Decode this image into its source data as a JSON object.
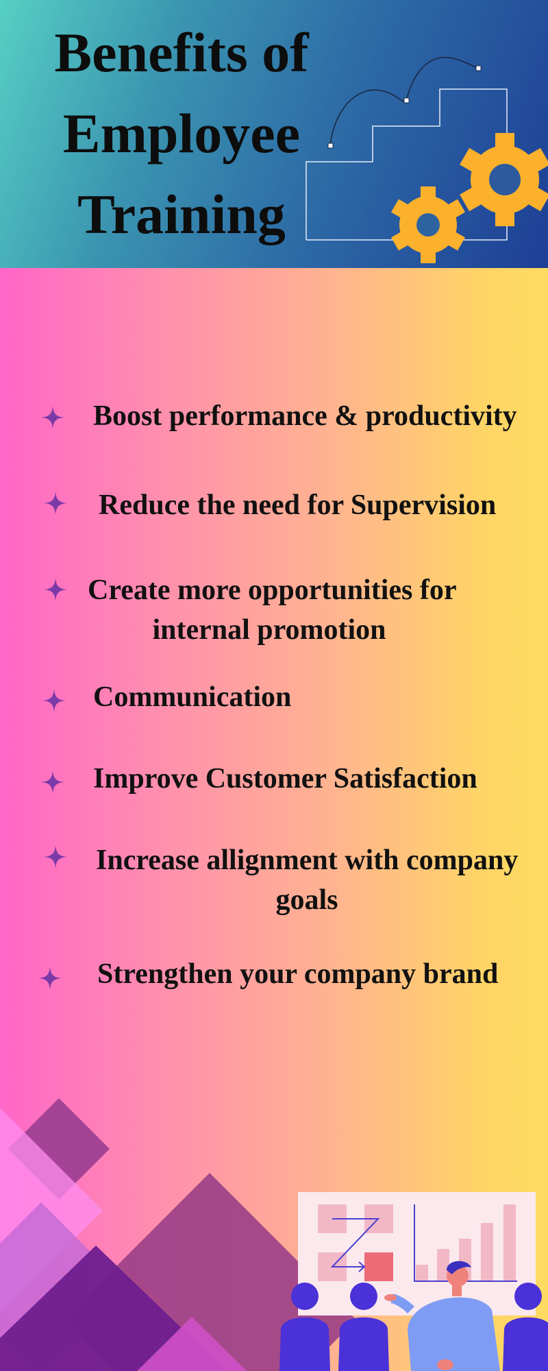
{
  "header": {
    "title_lines": [
      "Benefits of",
      "Employee",
      "Training"
    ],
    "colors": {
      "gear": "#fbb12c",
      "text": "#0d0d0d"
    },
    "icons": [
      "stairs-icon",
      "gear-icon"
    ]
  },
  "benefits": [
    {
      "line1": "Boost performance & productivity",
      "line2": ""
    },
    {
      "line1": "Reduce the need for Supervision",
      "line2": ""
    },
    {
      "line1": "Create more opportunities for",
      "line2": "internal promotion"
    },
    {
      "line1": "Communication",
      "line2": ""
    },
    {
      "line1": "Improve Customer Satisfaction",
      "line2": ""
    },
    {
      "line1": "Increase allignment with company",
      "line2": "goals"
    },
    {
      "line1": "Strengthen your company brand",
      "line2": ""
    }
  ],
  "colors": {
    "sparkle": "#7b3aa8",
    "person": "#4a31d8",
    "diamond_dark": "#6a1f8c"
  },
  "illustration": [
    "presentation-board-icon",
    "audience-icon",
    "presenter-icon"
  ]
}
